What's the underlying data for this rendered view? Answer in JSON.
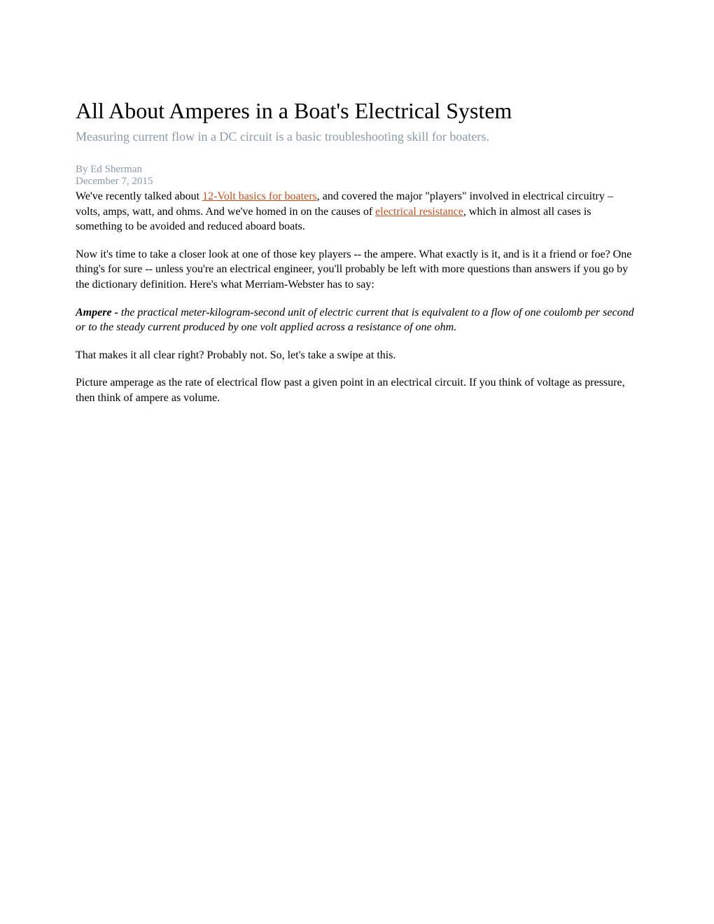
{
  "title": "All About Amperes in a Boat's Electrical System",
  "subtitle": "Measuring current flow in a DC circuit is a basic troubleshooting skill for boaters.",
  "byline": "By Ed Sherman",
  "date": "December 7, 2015",
  "intro_part1": "We've recently talked about ",
  "link1": "12-Volt basics for boaters",
  "intro_part2": ", and covered the major \"players\" involved in electrical circuitry – volts, amps, watt, and ohms. And we've homed in on the causes of ",
  "link2": "electrical resistance",
  "intro_part3": ", which in almost all cases is something to be avoided and reduced aboard boats.",
  "para2": "Now it's time to take a closer look at one of those key players -- the ampere. What exactly is it, and is it a friend or foe? One thing's for sure -- unless you're an electrical engineer, you'll probably be left with more questions than answers if you go by the dictionary definition. Here's what Merriam-Webster has to say:",
  "def_term": "Ampere -",
  "def_text": "  the practical meter-kilogram-second unit of electric current that is equivalent to a flow of one coulomb per second or to the steady current produced by one volt applied across a resistance of one ohm.",
  "para4": "That makes it all clear right? Probably not. So, let's take a swipe at this.",
  "para5": "Picture amperage as the rate of electrical flow past a given point in an electrical circuit. If you think of voltage as pressure, then think of ampere as volume."
}
